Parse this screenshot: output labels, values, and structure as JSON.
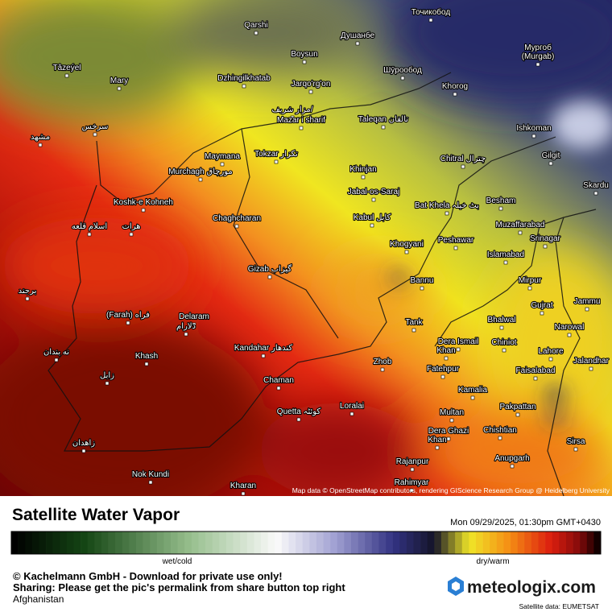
{
  "map": {
    "attribution": "Map data © OpenStreetMap contributors, rendering GIScience Research Group @ Heidelberg University",
    "places": [
      "Qarshi",
      "Душанбе",
      "Точикобод",
      "Boysun",
      "Мургоб",
      "(Murgab)",
      "Tâzeýel",
      "Mary",
      "Dzhingilkhatab",
      "Jarqo'rg'on",
      "Шӯрообод",
      "Khorog",
      "مزار شریف/",
      "Mazar i sharif",
      "Taleqan تالقان",
      "Ishkoman",
      "سرخس",
      "مشهد",
      "Maymana",
      "Tokzar تکزار",
      "Gilgit",
      "Chitral چترال",
      "Murchagh مورچاق",
      "Khinjan",
      "Skardu",
      "Jabal-os-Saraj",
      "Koshk-e Kohneh",
      "Bat Khela بٹ خیلہ",
      "Besham",
      "Chaghcharan",
      "Kabul کابل",
      "Muzaffarabad",
      "اسلام قلعه",
      "هرات",
      "Srinagar",
      "Peshawar",
      "Khogyani",
      "Islamabad",
      "Gizab گیزاب",
      "Bannu",
      "Mirpur",
      "برجند",
      "Jammu",
      "Gujrat",
      "(Farah) فراه",
      "Delaram",
      "دلارام",
      "Bhalwal",
      "Tank",
      "Narowal",
      "Dera Ismail",
      "Khan",
      "Chiniot",
      "Kandahar کندهار",
      "Lahore",
      "نه بندان",
      "Khash",
      "Jalandhar",
      "Zhob",
      "Fatehpur",
      "Faisalabad",
      "زابل",
      "Chaman",
      "Kamalia",
      "Loralai",
      "Pakpattan",
      "Quetta کوئٹہ",
      "Multan",
      "Dera Ghazi",
      "Khan",
      "Chishtian",
      "Sirsa",
      "زاهدان",
      "Anupgarh",
      "Rajanpur",
      "Nok Kundi",
      "Kharan",
      "Rahimyar"
    ]
  },
  "legend": {
    "title": "Satellite Water Vapor",
    "timestamp": "Mon 09/29/2025, 01:30pm GMT+0430",
    "low_label": "wet/cold",
    "high_label": "dry/warm"
  },
  "footer": {
    "copyright": "© Kachelmann GmbH - Download for private use only!",
    "sharing": "Sharing: Please get the pic's permalink from share button top right",
    "region": "Afghanistan",
    "brand": "meteologix.com",
    "source": "Satellite data: EUMETSAT"
  }
}
